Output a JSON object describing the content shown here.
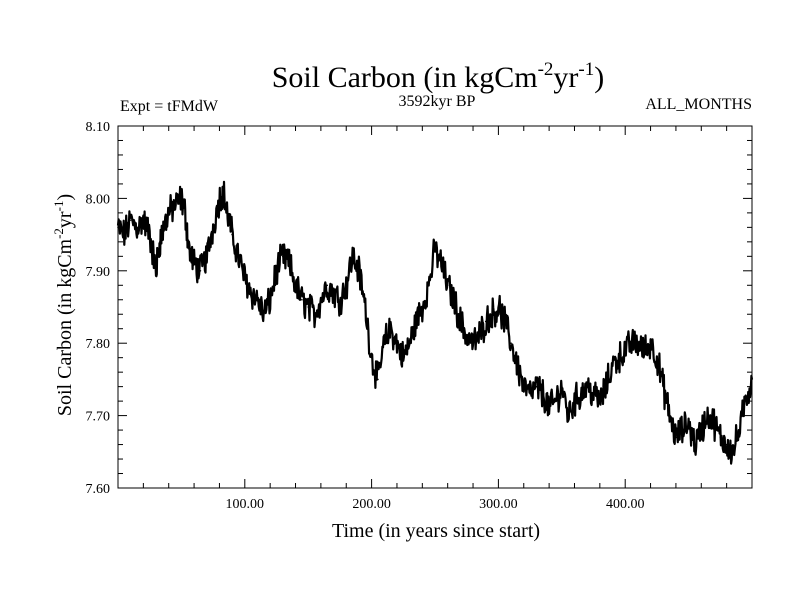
{
  "chart_data": {
    "type": "line",
    "title": {
      "main": "Soil Carbon (in kgCm",
      "sup1": "-2",
      "mid": "yr",
      "sup2": "-1",
      "end": ")"
    },
    "subtitle_left": "Expt = tFMdW",
    "subtitle_center": "3592kyr BP",
    "subtitle_right": "ALL_MONTHS",
    "xlabel": "Time (in years since start)",
    "ylabel": {
      "main": "Soil Carbon (in kgCm",
      "sup1": "-2",
      "mid": "yr",
      "sup2": "-1",
      "end": ")"
    },
    "xlim": [
      0,
      500
    ],
    "ylim": [
      7.6,
      8.1
    ],
    "x_ticks": [
      100,
      200,
      300,
      400
    ],
    "x_tick_labels": [
      "100.00",
      "200.00",
      "300.00",
      "400.00"
    ],
    "y_ticks": [
      7.6,
      7.7,
      7.8,
      7.9,
      8.0,
      8.1
    ],
    "y_tick_labels": [
      "7.60",
      "7.70",
      "7.80",
      "7.90",
      "8.00",
      "8.10"
    ],
    "grid": false,
    "line_color": "#000000",
    "series": [
      {
        "name": "Soil Carbon",
        "x": [
          0,
          5,
          10,
          15,
          20,
          25,
          28,
          30,
          33,
          36,
          40,
          45,
          50,
          53,
          56,
          60,
          65,
          70,
          75,
          80,
          83,
          86,
          90,
          95,
          100,
          105,
          110,
          115,
          120,
          125,
          130,
          135,
          140,
          145,
          150,
          155,
          160,
          165,
          170,
          175,
          180,
          185,
          190,
          195,
          200,
          205,
          210,
          215,
          220,
          225,
          230,
          235,
          240,
          245,
          250,
          255,
          260,
          265,
          270,
          275,
          280,
          285,
          290,
          295,
          300,
          305,
          310,
          315,
          320,
          325,
          330,
          335,
          340,
          345,
          350,
          355,
          360,
          365,
          370,
          375,
          380,
          385,
          390,
          395,
          400,
          405,
          410,
          415,
          420,
          425,
          430,
          435,
          440,
          445,
          450,
          455,
          460,
          465,
          470,
          475,
          480,
          485,
          490,
          495,
          500
        ],
        "values": [
          7.96,
          7.95,
          7.97,
          7.96,
          7.97,
          7.95,
          7.92,
          7.9,
          7.94,
          7.96,
          7.98,
          7.99,
          8.0,
          7.98,
          7.93,
          7.91,
          7.9,
          7.92,
          7.96,
          8.0,
          8.01,
          7.98,
          7.95,
          7.92,
          7.89,
          7.87,
          7.86,
          7.84,
          7.86,
          7.9,
          7.92,
          7.91,
          7.88,
          7.86,
          7.85,
          7.84,
          7.86,
          7.88,
          7.87,
          7.86,
          7.88,
          7.92,
          7.9,
          7.85,
          7.78,
          7.75,
          7.8,
          7.82,
          7.8,
          7.78,
          7.8,
          7.83,
          7.85,
          7.88,
          7.93,
          7.91,
          7.88,
          7.86,
          7.83,
          7.81,
          7.8,
          7.81,
          7.83,
          7.84,
          7.85,
          7.83,
          7.8,
          7.77,
          7.74,
          7.73,
          7.74,
          7.73,
          7.71,
          7.72,
          7.74,
          7.7,
          7.72,
          7.73,
          7.74,
          7.73,
          7.72,
          7.74,
          7.77,
          7.78,
          7.79,
          7.8,
          7.8,
          7.79,
          7.8,
          7.78,
          7.74,
          7.7,
          7.67,
          7.68,
          7.69,
          7.66,
          7.68,
          7.7,
          7.69,
          7.67,
          7.66,
          7.65,
          7.68,
          7.72,
          7.75
        ]
      }
    ]
  }
}
